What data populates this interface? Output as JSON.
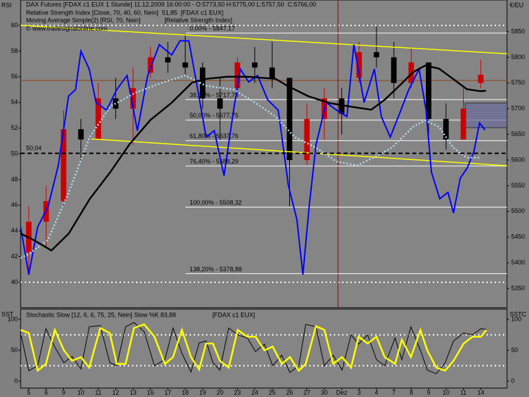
{
  "chart_data": [
    {
      "type": "candlestick",
      "header": {
        "symbol": "DAX Futures [FDAX c1 EUX  1 Stunde] 11.12.2009 16:00:00 - O:5773,50 H:5775,00 L:5757,50",
        "close": "C:5766,00"
      },
      "y_axis_label": "RSI",
      "y2_axis_label": "€/EU",
      "watermark": "© www.tradesignalonline.com",
      "xlim": [
        -0.47,
        27.51
      ],
      "xticks": [
        {
          "value": 0,
          "label": "5"
        },
        {
          "value": 1,
          "label": "6"
        },
        {
          "value": 2,
          "label": "9"
        },
        {
          "value": 3,
          "label": "10"
        },
        {
          "value": 4,
          "label": "11"
        },
        {
          "value": 5,
          "label": "12"
        },
        {
          "value": 6,
          "label": "13"
        },
        {
          "value": 7,
          "label": "16"
        },
        {
          "value": 8,
          "label": "17"
        },
        {
          "value": 9,
          "label": "18"
        },
        {
          "value": 10,
          "label": "19"
        },
        {
          "value": 11,
          "label": "20"
        },
        {
          "value": 12,
          "label": "23"
        },
        {
          "value": 13,
          "label": "24"
        },
        {
          "value": 14,
          "label": "25"
        },
        {
          "value": 15,
          "label": "26"
        },
        {
          "value": 16,
          "label": "27"
        },
        {
          "value": 17,
          "label": "30"
        },
        {
          "value": 18,
          "label": "Dez"
        },
        {
          "value": 19,
          "label": "3"
        },
        {
          "value": 20,
          "label": "4"
        },
        {
          "value": 21,
          "label": "7"
        },
        {
          "value": 22,
          "label": "8"
        },
        {
          "value": 23,
          "label": "9"
        },
        {
          "value": 24,
          "label": "10"
        },
        {
          "value": 25,
          "label": "11"
        },
        {
          "value": 26,
          "label": "14"
        }
      ],
      "ylim": [
        38.02,
        61.98
      ],
      "yticks": [
        40,
        42,
        44,
        46,
        48,
        50,
        52,
        54,
        56,
        58,
        60
      ],
      "y2lim": [
        5312.6,
        5911.5
      ],
      "y2ticks": [
        5350,
        5400,
        5450,
        5500,
        5550,
        5600,
        5650,
        5700,
        5750,
        5800,
        5850
      ],
      "candles": {
        "up_color": "#cc0000",
        "down_color": "#000000",
        "x": [
          0,
          1,
          2,
          3,
          4,
          5,
          6,
          7,
          8,
          9,
          10,
          11,
          12,
          13,
          14,
          15,
          16,
          17,
          18,
          19,
          20,
          21,
          22,
          23,
          24,
          25,
          26
        ],
        "open": [
          5420,
          5480,
          5520,
          5660,
          5640,
          5720,
          5700,
          5770,
          5800,
          5790,
          5780,
          5720,
          5740,
          5790,
          5780,
          5760,
          5600,
          5680,
          5720,
          5760,
          5810,
          5800,
          5750,
          5790,
          5680,
          5640,
          5750
        ],
        "high": [
          5510,
          5550,
          5697,
          5680,
          5750,
          5760,
          5780,
          5820,
          5830,
          5845,
          5790,
          5760,
          5800,
          5820,
          5830,
          5760,
          5710,
          5740,
          5740,
          5830,
          5860,
          5830,
          5820,
          5790,
          5710,
          5740,
          5795
        ],
        "low": [
          5377,
          5430,
          5510,
          5600,
          5640,
          5680,
          5630,
          5760,
          5770,
          5765,
          5700,
          5640,
          5730,
          5750,
          5740,
          5510,
          5590,
          5640,
          5650,
          5750,
          5780,
          5720,
          5740,
          5640,
          5620,
          5640,
          5740
        ],
        "close": [
          5480,
          5520,
          5660,
          5640,
          5720,
          5700,
          5740,
          5800,
          5790,
          5780,
          5720,
          5700,
          5790,
          5780,
          5760,
          5600,
          5680,
          5720,
          5690,
          5810,
          5800,
          5750,
          5790,
          5680,
          5640,
          5700,
          5766
        ]
      },
      "series": [
        {
          "name": "Relative Strength Index [Close, 70, 40, 60, Nein]",
          "value_label": "51,85",
          "source": "[FDAX c1 EUX]",
          "color": "#0000ff",
          "x": [
            -0.47,
            0,
            0.51,
            1.11,
            1.7,
            2.29,
            2.69,
            3,
            3.48,
            3.87,
            4.47,
            5.06,
            5.65,
            6.25,
            6.84,
            7.51,
            8.22,
            8.7,
            9.21,
            9.72,
            10.2,
            10.67,
            11.23,
            11.78,
            12.17,
            12.65,
            13.16,
            13.75,
            14.35,
            14.94,
            15.42,
            15.77,
            16.13,
            16.52,
            17.11,
            17.71,
            18.3,
            18.7,
            19.29,
            19.88,
            20.28,
            20.79,
            21.26,
            21.86,
            22.45,
            22.85,
            23.16,
            23.64,
            24.11,
            24.43,
            24.82,
            25.22,
            25.61,
            25.93,
            26.25
          ],
          "values": [
            44.3,
            40.6,
            44.3,
            45.9,
            49.1,
            54.5,
            55,
            58,
            56.6,
            54,
            53.4,
            55,
            56.1,
            51.8,
            56.1,
            58.5,
            57.7,
            58.8,
            58.8,
            55,
            51.3,
            51.8,
            48.3,
            53.4,
            56.6,
            55.6,
            56.1,
            54.2,
            53.4,
            47.5,
            44.9,
            40.6,
            45.9,
            50.7,
            54,
            53.4,
            52.9,
            58.5,
            54,
            56.6,
            52.9,
            51.3,
            52.9,
            55,
            56.6,
            53.4,
            48.6,
            46.5,
            47,
            45.4,
            48.1,
            48.9,
            50.2,
            52.4,
            51.85
          ]
        },
        {
          "name": "Moving Average Simple(2) [RSI, 70, Nein]",
          "source": "[Relative Strength Index]",
          "color": "#b8e4f4",
          "dashed": true,
          "x": [
            -0.47,
            0,
            1.1,
            2.3,
            3.5,
            4.7,
            6.2,
            7.8,
            9,
            10.2,
            11.8,
            13,
            14.2,
            15.3,
            16.5,
            17.7,
            18.9,
            20.1,
            20.9,
            22.1,
            22.8,
            23.6,
            24.4,
            25.2,
            26
          ],
          "values": [
            41.9,
            42.2,
            43.3,
            47,
            51.3,
            53.7,
            54.8,
            55.6,
            56.1,
            55.3,
            55,
            54,
            52.9,
            51.3,
            50.5,
            49.4,
            49.1,
            49.9,
            50.5,
            52.1,
            52.6,
            52.1,
            50.5,
            49.7,
            49.7
          ]
        },
        {
          "color": "#000000",
          "axis": "y2",
          "x": [
            -0.47,
            0.3,
            1.3,
            2.3,
            3.5,
            4.7,
            5.8,
            7,
            8.2,
            9.4,
            10.2,
            11.4,
            12.6,
            14.2,
            14.9,
            16.1,
            17.3,
            18.5,
            19.7,
            20.5,
            21.3,
            22.1,
            22.8,
            23.6,
            24.4,
            25.2,
            26,
            26.3
          ],
          "values": [
            5457,
            5444,
            5424,
            5457,
            5524,
            5577,
            5631,
            5678,
            5711,
            5751,
            5758,
            5762,
            5762,
            5758,
            5744,
            5724,
            5711,
            5704,
            5698,
            5718,
            5744,
            5771,
            5784,
            5778,
            5758,
            5738,
            5734,
            5735
          ]
        }
      ],
      "levels": [
        60,
        40
      ],
      "midline": {
        "value": 50.04,
        "label": "50,04"
      },
      "fib_levels": [
        {
          "value": 5847.17,
          "label": "0,00% - 5847,17"
        },
        {
          "value": 5717.73,
          "label": "38,20% - 5717,73"
        },
        {
          "value": 5677.75,
          "label": "50,00% - 5677,75"
        },
        {
          "value": 5637.76,
          "label": "61,80% - 5637,76"
        },
        {
          "value": 5588.29,
          "label": "76,40% - 5588,29"
        },
        {
          "value": 5508.32,
          "label": "100,00% - 5508,32"
        },
        {
          "value": 5378.88,
          "label": "138,20% - 5378,88"
        }
      ],
      "trendlines": {
        "color": "#ffff00",
        "lines": [
          {
            "x": [
              -0.47,
              27.51
            ],
            "values": [
              5862,
              5807
            ]
          },
          {
            "x": [
              3.6,
              27.51
            ],
            "values": [
              5641,
              5589
            ]
          }
        ]
      },
      "zone": {
        "x": [
          25.1,
          27.51
        ],
        "values": [
          5711,
          5663
        ],
        "color": "#6a6a9a"
      },
      "hline": {
        "value": 5755,
        "color": "#8b4513"
      },
      "vline": {
        "value": 17.79,
        "color": "#8b0000"
      }
    },
    {
      "type": "line",
      "header": {
        "name": "Stochastic Slow [12, 6, 6, 75, 25, Nein] Slow %K 83,88",
        "source": "[FDAX c1 EUX]"
      },
      "y_axis_label": "SST",
      "y2_axis_label": "SSTC",
      "xlim": [
        -0.47,
        27.51
      ],
      "ylim": [
        -11.1,
        116.7
      ],
      "yticks": [
        0,
        50,
        100
      ],
      "y2lim": [
        -11.1,
        116.7
      ],
      "y2ticks": [
        0,
        50,
        100
      ],
      "levels": [
        75,
        25
      ],
      "x": [
        -0.47,
        0,
        0.51,
        0.99,
        1.5,
        2.02,
        2.49,
        3,
        3.48,
        4.11,
        4.66,
        5.06,
        5.57,
        6.05,
        6.64,
        7.23,
        7.83,
        8.3,
        8.81,
        9.33,
        9.8,
        10.2,
        10.59,
        10.99,
        11.5,
        12.02,
        12.57,
        13.04,
        13.56,
        14.03,
        14.55,
        15.02,
        15.53,
        15.93,
        16.52,
        17,
        17.51,
        18.02,
        18.54,
        18.97,
        19.49,
        20,
        20.47,
        21.07,
        21.46,
        21.98,
        22.53,
        22.92,
        23.44,
        23.95,
        24.43,
        25.02,
        25.53,
        26.01,
        26.32
      ],
      "series": [
        {
          "color": "#000000",
          "values": [
            78,
            17,
            25,
            85,
            55,
            30,
            40,
            20,
            88,
            90,
            30,
            25,
            88,
            95,
            80,
            25,
            35,
            86,
            45,
            15,
            62,
            65,
            30,
            18,
            86,
            75,
            70,
            48,
            60,
            25,
            42,
            14,
            25,
            92,
            88,
            25,
            42,
            18,
            75,
            60,
            75,
            35,
            25,
            70,
            35,
            88,
            50,
            18,
            12,
            30,
            65,
            78,
            75,
            85,
            83.88
          ]
        },
        {
          "color": "#ffff00",
          "width": 2.5,
          "values": [
            83,
            78,
            17,
            28,
            83,
            50,
            33,
            39,
            22,
            86,
            78,
            28,
            28,
            86,
            92,
            72,
            28,
            39,
            83,
            39,
            19,
            61,
            61,
            33,
            22,
            83,
            72,
            72,
            50,
            56,
            28,
            39,
            17,
            28,
            89,
            83,
            28,
            39,
            22,
            72,
            61,
            72,
            39,
            28,
            67,
            39,
            83,
            50,
            22,
            17,
            33,
            61,
            72,
            72,
            83
          ]
        }
      ]
    }
  ]
}
